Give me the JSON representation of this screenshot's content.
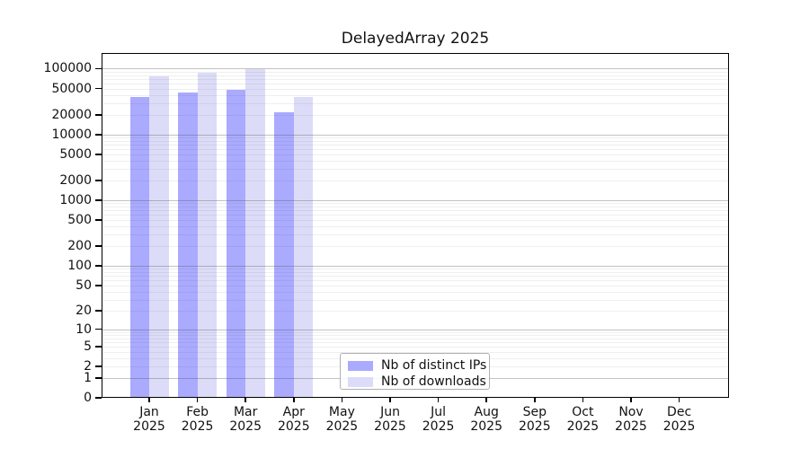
{
  "chart_data": {
    "type": "bar",
    "title": "DelayedArray 2025",
    "year_label": "2025",
    "categories": [
      "Jan",
      "Feb",
      "Mar",
      "Apr",
      "May",
      "Jun",
      "Jul",
      "Aug",
      "Sep",
      "Oct",
      "Nov",
      "Dec"
    ],
    "series": [
      {
        "name": "Nb of distinct IPs",
        "color": "#aaaaff",
        "values": [
          37500,
          43000,
          47500,
          21500,
          null,
          null,
          null,
          null,
          null,
          null,
          null,
          null
        ]
      },
      {
        "name": "Nb of downloads",
        "color": "#dcdcf8",
        "values": [
          76000,
          86000,
          97000,
          37500,
          null,
          null,
          null,
          null,
          null,
          null,
          null,
          null
        ]
      }
    ],
    "y_scale": "log1p",
    "y_ticks": [
      100000,
      50000,
      20000,
      10000,
      5000,
      2000,
      1000,
      500,
      200,
      100,
      50,
      20,
      10,
      5,
      2,
      1,
      0
    ],
    "ylim_top_approx": 170000,
    "grid": true,
    "legend_position": "inside-bottom-center",
    "colors": {
      "background": "#ffffff",
      "axis": "#000000",
      "major_grid": "#c2c2c2",
      "minor_grid": "#efefef"
    }
  }
}
